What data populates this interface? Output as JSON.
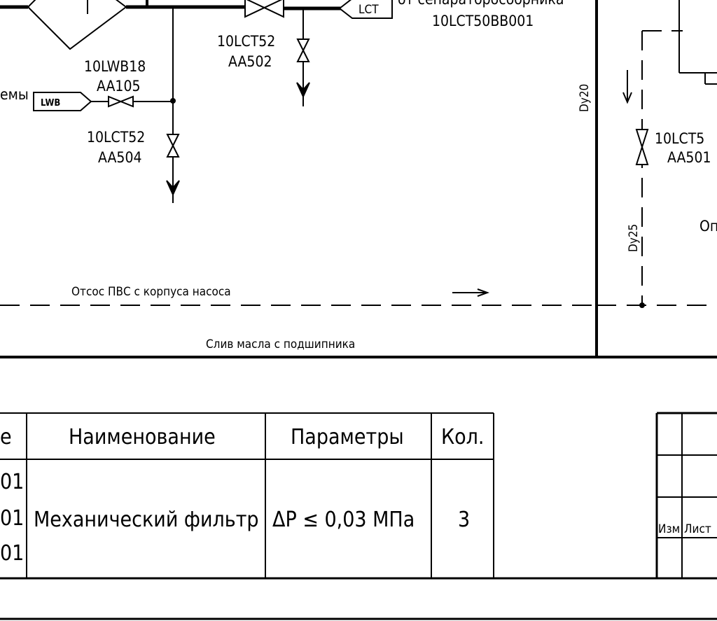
{
  "diagram": {
    "tags": {
      "lct_tag": "LCT",
      "lwb_tag": "LWB"
    },
    "labels": {
      "from_separator": "от сепараторосборника",
      "separator_code": "10LCT50BB001",
      "valve_502_line1": "10LCT52",
      "valve_502_line2": "AA502",
      "valve_105_line1": "10LWB18",
      "valve_105_line2": "AA105",
      "partial_left": "емы",
      "valve_504_line1": "10LCT52",
      "valve_504_line2": "AA504",
      "valve_501_line1": "10LCT5",
      "valve_501_line2": "AA501",
      "dy20": "Dy20",
      "dy25": "Dy25",
      "partial_right": "Оп",
      "suction_line": "Отсос ПВС с корпуса насоса",
      "oil_drain": "Слив масла с подшипника"
    }
  },
  "spec_table": {
    "headers": {
      "col_code": "е",
      "col_name": "Наименование",
      "col_params": "Параметры",
      "col_qty": "Кол."
    },
    "row": {
      "code_1": "01",
      "code_2": "01",
      "code_3": "01",
      "name": "Механический фильтр",
      "params": "ΔP ≤ 0,03 МПа",
      "qty": "3"
    }
  },
  "title_block": {
    "izm": "Изм",
    "list": "Лист"
  }
}
